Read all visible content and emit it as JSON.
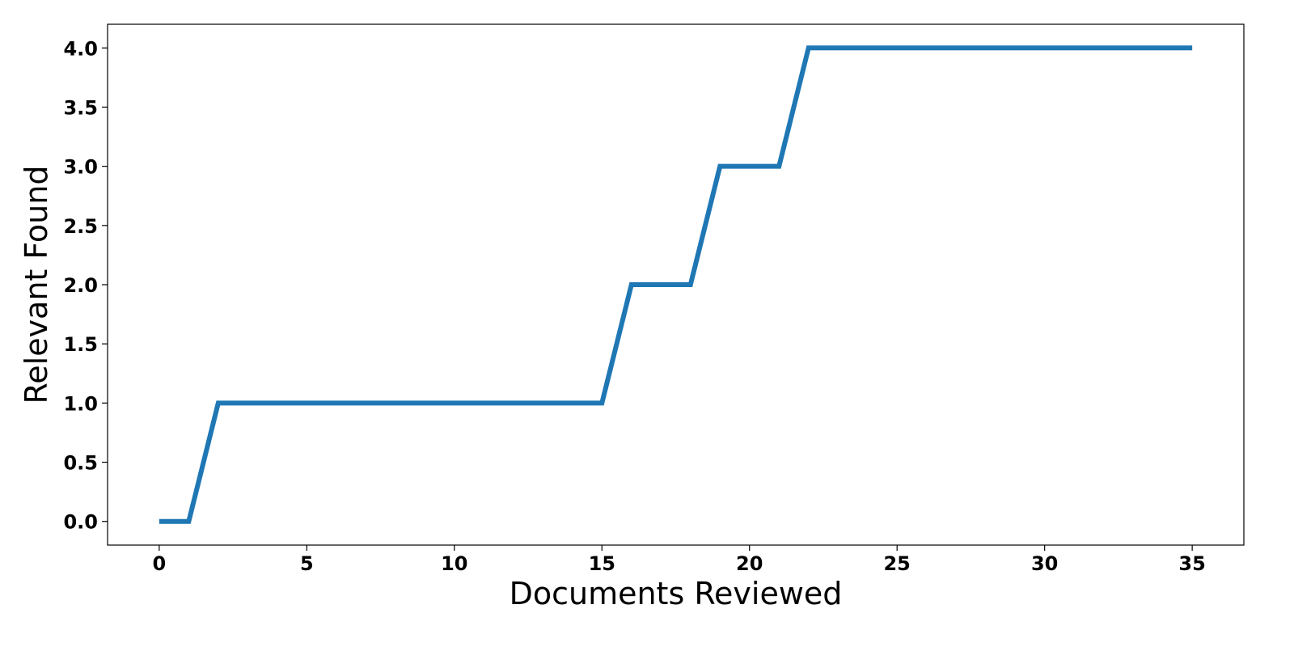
{
  "chart_data": {
    "type": "line",
    "title": "",
    "xlabel": "Documents Reviewed",
    "ylabel": "Relevant Found",
    "xlim": [
      -1.75,
      36.75
    ],
    "ylim": [
      -0.2,
      4.2
    ],
    "xticks": [
      0,
      5,
      10,
      15,
      20,
      25,
      30,
      35
    ],
    "xtick_labels": [
      "0",
      "5",
      "10",
      "15",
      "20",
      "25",
      "30",
      "35"
    ],
    "yticks": [
      0.0,
      0.5,
      1.0,
      1.5,
      2.0,
      2.5,
      3.0,
      3.5,
      4.0
    ],
    "ytick_labels": [
      "0.0",
      "0.5",
      "1.0",
      "1.5",
      "2.0",
      "2.5",
      "3.0",
      "3.5",
      "4.0"
    ],
    "grid": false,
    "series": [
      {
        "color": "#1f77b4",
        "x": [
          0,
          1,
          2,
          15,
          16,
          18,
          19,
          21,
          22,
          35
        ],
        "y": [
          0,
          0,
          1,
          1,
          2,
          2,
          3,
          3,
          4,
          4
        ]
      }
    ]
  }
}
